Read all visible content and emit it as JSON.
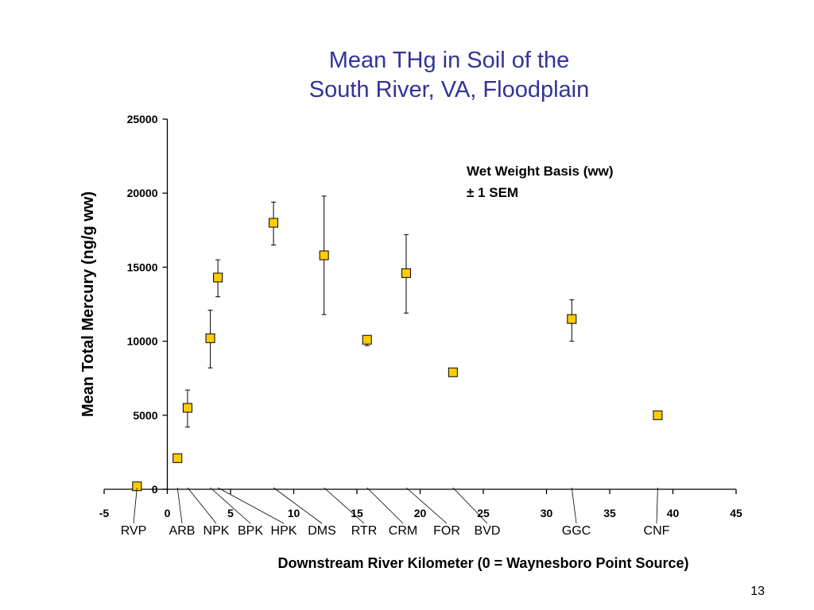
{
  "slide": {
    "title_line1": "Mean THg in Soil of the",
    "title_line2": "South River, VA, Floodplain",
    "page_number": "13"
  },
  "chart_data": {
    "type": "scatter",
    "title": "Mean THg in Soil of the South River, VA, Floodplain",
    "xlabel": "Downstream River Kilometer (0 = Waynesboro Point Source)",
    "ylabel": "Mean Total Mercury (ng/g ww)",
    "xlim": [
      -5,
      45
    ],
    "ylim": [
      0,
      25000
    ],
    "x_ticks": [
      "-5",
      "0",
      "5",
      "10",
      "15",
      "20",
      "25",
      "30",
      "35",
      "40",
      "45"
    ],
    "y_ticks": [
      "0",
      "5000",
      "10000",
      "15000",
      "20000",
      "25000"
    ],
    "annotation_line1": "Wet Weight Basis (ww)",
    "annotation_line2": "± 1 SEM",
    "marker_color": "#FFCC00",
    "grid": false,
    "points": [
      {
        "x": -2.4,
        "y": 200,
        "lo": 200,
        "hi": 200
      },
      {
        "x": 0.8,
        "y": 2100,
        "lo": 1900,
        "hi": 2300
      },
      {
        "x": 1.6,
        "y": 5500,
        "lo": 4200,
        "hi": 6700
      },
      {
        "x": 3.4,
        "y": 10200,
        "lo": 8200,
        "hi": 12100
      },
      {
        "x": 4.0,
        "y": 14300,
        "lo": 13000,
        "hi": 15500
      },
      {
        "x": 8.4,
        "y": 18000,
        "lo": 16500,
        "hi": 19400
      },
      {
        "x": 12.4,
        "y": 15800,
        "lo": 11800,
        "hi": 19800
      },
      {
        "x": 15.8,
        "y": 10100,
        "lo": 9700,
        "hi": 10300
      },
      {
        "x": 18.9,
        "y": 14600,
        "lo": 11900,
        "hi": 17200
      },
      {
        "x": 22.6,
        "y": 7900,
        "lo": 7700,
        "hi": 8000
      },
      {
        "x": 32.0,
        "y": 11500,
        "lo": 10000,
        "hi": 12800
      },
      {
        "x": 38.8,
        "y": 5000,
        "lo": 4900,
        "hi": 5100
      }
    ],
    "site_labels": [
      {
        "name": "RVP",
        "x": -2.4
      },
      {
        "name": "ARB",
        "x": 0.8
      },
      {
        "name": "NPK",
        "x": 1.6
      },
      {
        "name": "BPK",
        "x": 3.4
      },
      {
        "name": "HPK",
        "x": 4.0
      },
      {
        "name": "DMS",
        "x": 8.4
      },
      {
        "name": "RTR",
        "x": 12.4
      },
      {
        "name": "CRM",
        "x": 15.8
      },
      {
        "name": "FOR",
        "x": 18.9
      },
      {
        "name": "BVD",
        "x": 22.6
      },
      {
        "name": "GGC",
        "x": 32.0
      },
      {
        "name": "CNF",
        "x": 38.8
      }
    ]
  }
}
